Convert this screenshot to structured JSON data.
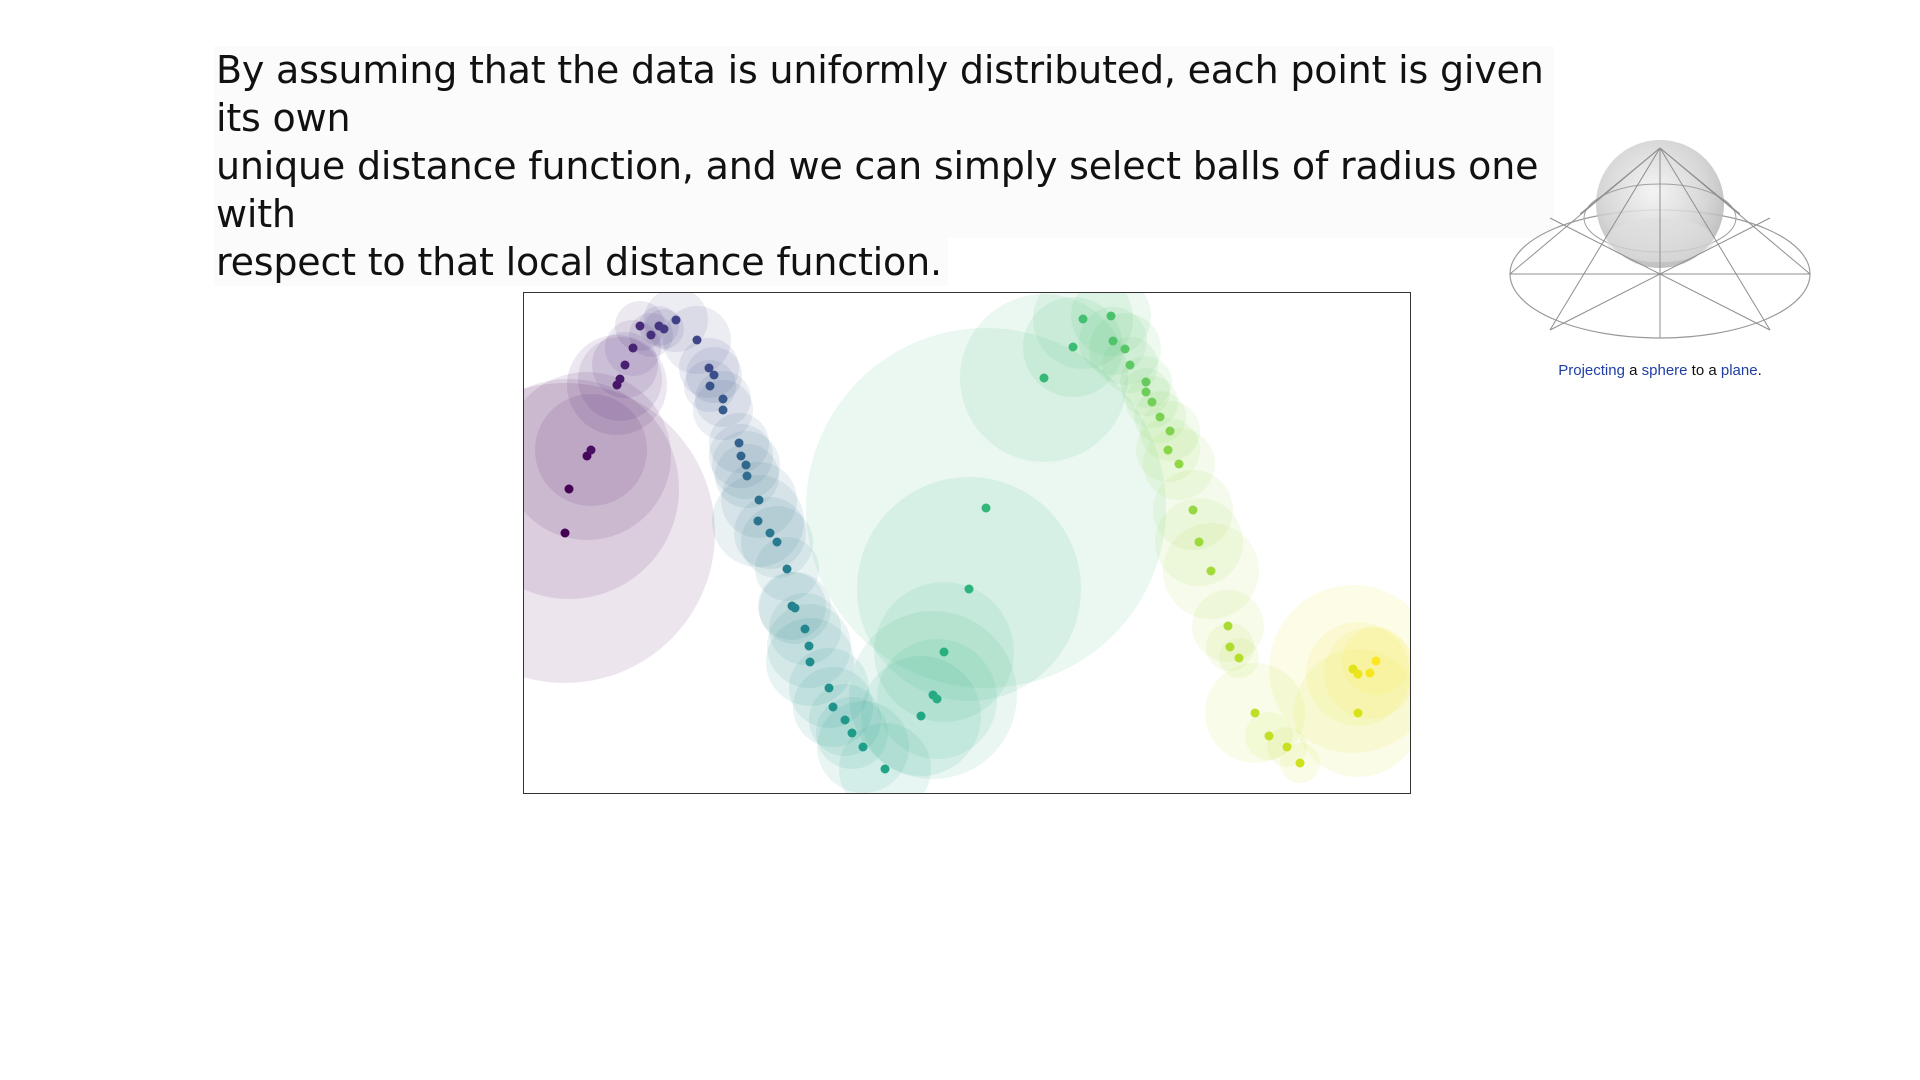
{
  "slide": {
    "lines": [
      "By assuming that the data is uniformly distributed, each point is given its own",
      "unique distance function, and we can simply select balls of radius one with",
      "respect to that local distance function."
    ]
  },
  "figure": {
    "caption": {
      "w1": "Projecting",
      "w2": " a ",
      "w3": "sphere",
      "w4": " to a ",
      "w5": "plane",
      "w6": "."
    },
    "icon": "sphere-projection-icon"
  },
  "chart_data": {
    "type": "scatter",
    "title": "",
    "xlabel": "",
    "ylabel": "",
    "colormap": "viridis",
    "grid": false,
    "xlim": [
      0,
      888
    ],
    "ylim": [
      0,
      502
    ],
    "points": [
      {
        "x": 41,
        "y": 240,
        "r": 150,
        "c": "#440154"
      },
      {
        "x": 45,
        "y": 196,
        "r": 110,
        "c": "#440154"
      },
      {
        "x": 63,
        "y": 163,
        "r": 84,
        "c": "#46085c"
      },
      {
        "x": 67,
        "y": 157,
        "r": 56,
        "c": "#470e61"
      },
      {
        "x": 93,
        "y": 92,
        "r": 50,
        "c": "#481467"
      },
      {
        "x": 96,
        "y": 86,
        "r": 42,
        "c": "#481a6c"
      },
      {
        "x": 101,
        "y": 72,
        "r": 33,
        "c": "#482071"
      },
      {
        "x": 109,
        "y": 55,
        "r": 28,
        "c": "#472575"
      },
      {
        "x": 116,
        "y": 33,
        "r": 25,
        "c": "#472a7a"
      },
      {
        "x": 127,
        "y": 42,
        "r": 22,
        "c": "#46307e"
      },
      {
        "x": 135,
        "y": 33,
        "r": 20,
        "c": "#453581"
      },
      {
        "x": 140,
        "y": 36,
        "r": 20,
        "c": "#443a83"
      },
      {
        "x": 152,
        "y": 27,
        "r": 32,
        "c": "#424086"
      },
      {
        "x": 173,
        "y": 47,
        "r": 34,
        "c": "#404588"
      },
      {
        "x": 185,
        "y": 75,
        "r": 30,
        "c": "#3e4989"
      },
      {
        "x": 190,
        "y": 82,
        "r": 28,
        "c": "#3c4f8a"
      },
      {
        "x": 186,
        "y": 93,
        "r": 26,
        "c": "#3a538b"
      },
      {
        "x": 199,
        "y": 106,
        "r": 28,
        "c": "#38588c"
      },
      {
        "x": 199,
        "y": 117,
        "r": 30,
        "c": "#365c8d"
      },
      {
        "x": 215,
        "y": 150,
        "r": 30,
        "c": "#34618d"
      },
      {
        "x": 217,
        "y": 163,
        "r": 32,
        "c": "#32658e"
      },
      {
        "x": 222,
        "y": 172,
        "r": 34,
        "c": "#31688e"
      },
      {
        "x": 223,
        "y": 183,
        "r": 32,
        "c": "#2f6c8e"
      },
      {
        "x": 235,
        "y": 207,
        "r": 38,
        "c": "#2e6f8e"
      },
      {
        "x": 234,
        "y": 228,
        "r": 46,
        "c": "#2c738e"
      },
      {
        "x": 246,
        "y": 240,
        "r": 36,
        "c": "#2b778e"
      },
      {
        "x": 253,
        "y": 249,
        "r": 36,
        "c": "#297a8e"
      },
      {
        "x": 263,
        "y": 276,
        "r": 32,
        "c": "#287d8e"
      },
      {
        "x": 268,
        "y": 313,
        "r": 34,
        "c": "#27808e"
      },
      {
        "x": 271,
        "y": 315,
        "r": 36,
        "c": "#26848e"
      },
      {
        "x": 281,
        "y": 336,
        "r": 36,
        "c": "#25878e"
      },
      {
        "x": 285,
        "y": 353,
        "r": 42,
        "c": "#238a8d"
      },
      {
        "x": 286,
        "y": 369,
        "r": 44,
        "c": "#228d8d"
      },
      {
        "x": 305,
        "y": 395,
        "r": 40,
        "c": "#21918c"
      },
      {
        "x": 309,
        "y": 414,
        "r": 40,
        "c": "#20948c"
      },
      {
        "x": 321,
        "y": 427,
        "r": 36,
        "c": "#1f988b"
      },
      {
        "x": 328,
        "y": 440,
        "r": 36,
        "c": "#1f9b89"
      },
      {
        "x": 339,
        "y": 454,
        "r": 46,
        "c": "#1f9e89"
      },
      {
        "x": 361,
        "y": 476,
        "r": 46,
        "c": "#20a386"
      },
      {
        "x": 397,
        "y": 423,
        "r": 60,
        "c": "#22a785"
      },
      {
        "x": 409,
        "y": 402,
        "r": 84,
        "c": "#24aa83"
      },
      {
        "x": 413,
        "y": 406,
        "r": 60,
        "c": "#27ad81"
      },
      {
        "x": 420,
        "y": 359,
        "r": 70,
        "c": "#2ab07f"
      },
      {
        "x": 445,
        "y": 296,
        "r": 112,
        "c": "#2eb37c"
      },
      {
        "x": 462,
        "y": 215,
        "r": 180,
        "c": "#32b67a"
      },
      {
        "x": 520,
        "y": 85,
        "r": 84,
        "c": "#37b878"
      },
      {
        "x": 549,
        "y": 54,
        "r": 50,
        "c": "#3dbc74"
      },
      {
        "x": 559,
        "y": 26,
        "r": 50,
        "c": "#43bf71"
      },
      {
        "x": 587,
        "y": 23,
        "r": 40,
        "c": "#4ac16d"
      },
      {
        "x": 589,
        "y": 48,
        "r": 34,
        "c": "#50c46a"
      },
      {
        "x": 601,
        "y": 56,
        "r": 36,
        "c": "#56c667"
      },
      {
        "x": 606,
        "y": 72,
        "r": 28,
        "c": "#5ec962"
      },
      {
        "x": 622,
        "y": 89,
        "r": 26,
        "c": "#65cb5e"
      },
      {
        "x": 622,
        "y": 99,
        "r": 24,
        "c": "#6ccd5a"
      },
      {
        "x": 628,
        "y": 109,
        "r": 26,
        "c": "#73d056"
      },
      {
        "x": 636,
        "y": 124,
        "r": 26,
        "c": "#7ad151"
      },
      {
        "x": 646,
        "y": 138,
        "r": 30,
        "c": "#81d34d"
      },
      {
        "x": 644,
        "y": 157,
        "r": 32,
        "c": "#88d548"
      },
      {
        "x": 655,
        "y": 171,
        "r": 36,
        "c": "#8fd744"
      },
      {
        "x": 669,
        "y": 217,
        "r": 40,
        "c": "#95d840"
      },
      {
        "x": 675,
        "y": 249,
        "r": 44,
        "c": "#9cd93b"
      },
      {
        "x": 687,
        "y": 278,
        "r": 48,
        "c": "#a2da37"
      },
      {
        "x": 704,
        "y": 333,
        "r": 36,
        "c": "#a8db34"
      },
      {
        "x": 706,
        "y": 354,
        "r": 24,
        "c": "#aedc30"
      },
      {
        "x": 715,
        "y": 365,
        "r": 20,
        "c": "#b5dd2b"
      },
      {
        "x": 731,
        "y": 420,
        "r": 50,
        "c": "#bddf26"
      },
      {
        "x": 745,
        "y": 443,
        "r": 24,
        "c": "#c2df23"
      },
      {
        "x": 763,
        "y": 454,
        "r": 20,
        "c": "#c8e020"
      },
      {
        "x": 776,
        "y": 470,
        "r": 20,
        "c": "#cde11d"
      },
      {
        "x": 834,
        "y": 420,
        "r": 64,
        "c": "#d8e219"
      },
      {
        "x": 829,
        "y": 376,
        "r": 84,
        "c": "#e2e418"
      },
      {
        "x": 834,
        "y": 381,
        "r": 52,
        "c": "#ece51b"
      },
      {
        "x": 846,
        "y": 380,
        "r": 46,
        "c": "#f6e620"
      },
      {
        "x": 852,
        "y": 368,
        "r": 34,
        "c": "#fde725"
      }
    ]
  }
}
